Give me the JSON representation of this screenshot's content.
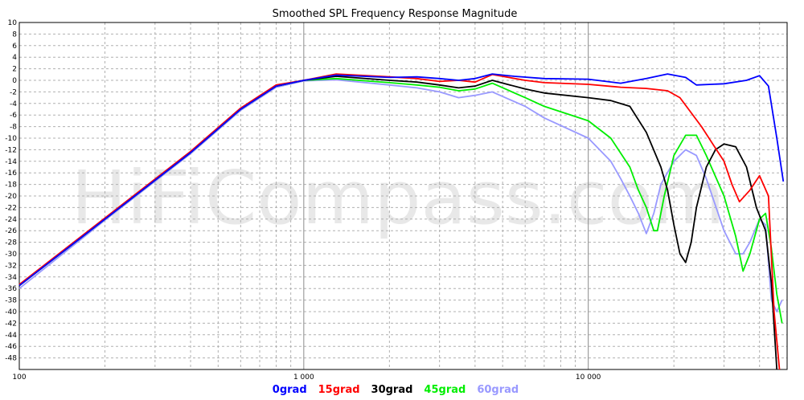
{
  "chart_data": {
    "type": "line",
    "title": "Smoothed SPL Frequency Response Magnitude",
    "watermark": "HiFiCompass.com",
    "x_scale": "log",
    "xlim": [
      100,
      50000
    ],
    "ylim": [
      -50,
      10
    ],
    "y_ticks": [
      10,
      8,
      6,
      4,
      2,
      0,
      -2,
      -4,
      -6,
      -8,
      -10,
      -12,
      -14,
      -16,
      -18,
      -20,
      -22,
      -24,
      -26,
      -28,
      -30,
      -32,
      -34,
      -36,
      -38,
      -40,
      -42,
      -44,
      -46,
      -48
    ],
    "x_tick_labels": [
      {
        "value": 100,
        "label": "100"
      },
      {
        "value": 1000,
        "label": "1 000"
      },
      {
        "value": 10000,
        "label": "10 000"
      }
    ],
    "grid": true,
    "legend_position": "bottom-center",
    "colors": {
      "0grad": "#0000ff",
      "15grad": "#ff0000",
      "30grad": "#000000",
      "45grad": "#00ee00",
      "60grad": "#9999ff"
    },
    "series": [
      {
        "name": "0grad",
        "color": "#0000ff",
        "points": [
          [
            100,
            -35.5
          ],
          [
            200,
            -24
          ],
          [
            400,
            -12.5
          ],
          [
            600,
            -5
          ],
          [
            800,
            -1
          ],
          [
            1000,
            0
          ],
          [
            1300,
            0.9
          ],
          [
            2000,
            0.5
          ],
          [
            2500,
            0.6
          ],
          [
            3000,
            0.3
          ],
          [
            3500,
            0
          ],
          [
            4000,
            0.3
          ],
          [
            4600,
            1.1
          ],
          [
            5500,
            0.7
          ],
          [
            7000,
            0.3
          ],
          [
            10000,
            0.2
          ],
          [
            13000,
            -0.5
          ],
          [
            16000,
            0.3
          ],
          [
            19000,
            1.1
          ],
          [
            22000,
            0.5
          ],
          [
            24000,
            -0.8
          ],
          [
            30000,
            -0.6
          ],
          [
            36000,
            0
          ],
          [
            40000,
            0.8
          ],
          [
            43000,
            -1
          ],
          [
            46000,
            -10
          ],
          [
            48500,
            -17.5
          ]
        ]
      },
      {
        "name": "15grad",
        "color": "#ff0000",
        "points": [
          [
            100,
            -35.3
          ],
          [
            200,
            -23.8
          ],
          [
            400,
            -12.3
          ],
          [
            600,
            -4.8
          ],
          [
            800,
            -0.8
          ],
          [
            1000,
            0
          ],
          [
            1300,
            1.1
          ],
          [
            2000,
            0.6
          ],
          [
            2500,
            0.3
          ],
          [
            3000,
            -0.2
          ],
          [
            3500,
            0
          ],
          [
            4000,
            -0.3
          ],
          [
            4600,
            1
          ],
          [
            6000,
            0
          ],
          [
            7000,
            -0.4
          ],
          [
            10000,
            -0.7
          ],
          [
            13000,
            -1.2
          ],
          [
            16000,
            -1.4
          ],
          [
            19000,
            -1.8
          ],
          [
            21000,
            -3
          ],
          [
            25000,
            -8
          ],
          [
            30000,
            -14
          ],
          [
            32000,
            -18
          ],
          [
            34000,
            -21
          ],
          [
            37000,
            -19
          ],
          [
            40000,
            -16.5
          ],
          [
            43000,
            -20
          ],
          [
            45000,
            -40
          ],
          [
            47000,
            -50
          ]
        ]
      },
      {
        "name": "30grad",
        "color": "#000000",
        "points": [
          [
            100,
            -35.5
          ],
          [
            200,
            -24
          ],
          [
            400,
            -12.5
          ],
          [
            600,
            -5
          ],
          [
            800,
            -1
          ],
          [
            1000,
            0
          ],
          [
            1300,
            0.7
          ],
          [
            2000,
            0
          ],
          [
            2500,
            -0.3
          ],
          [
            3000,
            -0.8
          ],
          [
            3500,
            -1.3
          ],
          [
            4000,
            -1
          ],
          [
            4600,
            0
          ],
          [
            6000,
            -1.5
          ],
          [
            7000,
            -2.2
          ],
          [
            10000,
            -3
          ],
          [
            12000,
            -3.5
          ],
          [
            14000,
            -4.5
          ],
          [
            16000,
            -9
          ],
          [
            18000,
            -15
          ],
          [
            19000,
            -19
          ],
          [
            20000,
            -25
          ],
          [
            21000,
            -30
          ],
          [
            22000,
            -31.5
          ],
          [
            23000,
            -28
          ],
          [
            24000,
            -22
          ],
          [
            26000,
            -15
          ],
          [
            28000,
            -12
          ],
          [
            30000,
            -11
          ],
          [
            33000,
            -11.5
          ],
          [
            36000,
            -15
          ],
          [
            39000,
            -22
          ],
          [
            42000,
            -26
          ],
          [
            44000,
            -35
          ],
          [
            46000,
            -50
          ]
        ]
      },
      {
        "name": "45grad",
        "color": "#00ee00",
        "points": [
          [
            100,
            -35.5
          ],
          [
            200,
            -24
          ],
          [
            400,
            -12.5
          ],
          [
            600,
            -5
          ],
          [
            800,
            -1
          ],
          [
            1000,
            0
          ],
          [
            1300,
            0.3
          ],
          [
            2000,
            -0.4
          ],
          [
            2500,
            -0.8
          ],
          [
            3000,
            -1.2
          ],
          [
            3500,
            -1.8
          ],
          [
            4000,
            -1.5
          ],
          [
            4600,
            -0.5
          ],
          [
            6000,
            -3
          ],
          [
            7000,
            -4.5
          ],
          [
            10000,
            -7
          ],
          [
            12000,
            -10
          ],
          [
            14000,
            -15
          ],
          [
            15000,
            -19
          ],
          [
            16000,
            -22
          ],
          [
            17000,
            -26
          ],
          [
            17500,
            -26
          ],
          [
            18500,
            -20
          ],
          [
            20000,
            -13
          ],
          [
            22000,
            -9.5
          ],
          [
            24000,
            -9.5
          ],
          [
            26000,
            -13
          ],
          [
            30000,
            -20
          ],
          [
            33000,
            -27
          ],
          [
            35000,
            -33
          ],
          [
            37000,
            -30
          ],
          [
            40000,
            -24
          ],
          [
            42000,
            -23
          ],
          [
            44000,
            -29
          ],
          [
            46000,
            -37
          ],
          [
            48000,
            -42
          ]
        ]
      },
      {
        "name": "60grad",
        "color": "#9999ff",
        "points": [
          [
            100,
            -36
          ],
          [
            200,
            -24.2
          ],
          [
            400,
            -12.7
          ],
          [
            600,
            -5.2
          ],
          [
            800,
            -1.2
          ],
          [
            1000,
            -0.1
          ],
          [
            1300,
            0.1
          ],
          [
            2000,
            -0.8
          ],
          [
            2500,
            -1.3
          ],
          [
            3000,
            -2
          ],
          [
            3500,
            -3
          ],
          [
            4000,
            -2.6
          ],
          [
            4600,
            -2
          ],
          [
            6000,
            -4.5
          ],
          [
            7000,
            -6.5
          ],
          [
            10000,
            -10
          ],
          [
            12000,
            -14
          ],
          [
            13000,
            -17
          ],
          [
            14000,
            -20
          ],
          [
            15000,
            -23
          ],
          [
            16000,
            -26.5
          ],
          [
            17000,
            -23
          ],
          [
            18000,
            -18
          ],
          [
            20000,
            -14
          ],
          [
            22000,
            -12
          ],
          [
            24000,
            -13
          ],
          [
            26000,
            -17
          ],
          [
            30000,
            -26
          ],
          [
            33000,
            -30
          ],
          [
            35000,
            -30
          ],
          [
            37000,
            -28
          ],
          [
            40000,
            -24
          ],
          [
            42000,
            -25
          ],
          [
            44000,
            -38
          ],
          [
            46000,
            -40
          ],
          [
            48000,
            -38
          ]
        ]
      }
    ]
  }
}
